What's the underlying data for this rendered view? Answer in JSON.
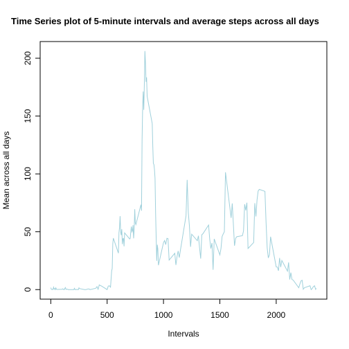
{
  "chart_data": {
    "type": "line",
    "title": "Time Series plot of 5-minute intervals and average steps across all days",
    "x_label": "Intervals",
    "y_label": "Mean across all days",
    "series": [
      {
        "name": "Mean across all days",
        "color": "#9fd0db",
        "x": [
          0,
          5,
          10,
          15,
          20,
          25,
          30,
          35,
          40,
          45,
          50,
          55,
          100,
          105,
          110,
          115,
          120,
          125,
          130,
          135,
          140,
          145,
          150,
          155,
          200,
          205,
          210,
          215,
          220,
          225,
          230,
          235,
          240,
          245,
          250,
          255,
          300,
          310,
          320,
          330,
          340,
          350,
          400,
          410,
          420,
          430,
          440,
          450,
          500,
          510,
          520,
          530,
          540,
          545,
          550,
          555,
          600,
          605,
          610,
          615,
          620,
          625,
          630,
          635,
          640,
          645,
          650,
          655,
          700,
          705,
          710,
          715,
          720,
          725,
          730,
          735,
          740,
          745,
          750,
          755,
          800,
          805,
          810,
          815,
          820,
          825,
          830,
          835,
          840,
          845,
          850,
          855,
          900,
          905,
          910,
          915,
          920,
          925,
          930,
          935,
          940,
          945,
          950,
          955,
          1000,
          1010,
          1020,
          1030,
          1040,
          1050,
          1100,
          1110,
          1120,
          1130,
          1140,
          1150,
          1200,
          1210,
          1220,
          1230,
          1240,
          1250,
          1300,
          1310,
          1320,
          1330,
          1340,
          1350,
          1400,
          1410,
          1420,
          1430,
          1440,
          1450,
          1500,
          1510,
          1520,
          1530,
          1540,
          1550,
          1600,
          1610,
          1620,
          1630,
          1640,
          1650,
          1700,
          1710,
          1720,
          1730,
          1740,
          1750,
          1800,
          1810,
          1820,
          1830,
          1840,
          1850,
          1900,
          1910,
          1920,
          1930,
          1940,
          1950,
          2000,
          2010,
          2020,
          2030,
          2040,
          2050,
          2100,
          2110,
          2120,
          2130,
          2140,
          2150,
          2200,
          2210,
          2220,
          2230,
          2240,
          2250,
          2300,
          2310,
          2320,
          2330,
          2340,
          2350,
          2355
        ],
        "values": [
          1.7,
          0.3,
          0.1,
          0.2,
          0.1,
          2.1,
          0.5,
          0.9,
          0,
          1.5,
          0.3,
          0.1,
          0.3,
          0.7,
          0.2,
          0.3,
          0,
          1.1,
          1.8,
          0.2,
          0.2,
          0.4,
          0.3,
          0,
          0,
          0,
          1.1,
          0,
          0,
          0.1,
          0,
          0.2,
          0,
          0,
          1.5,
          0.9,
          0,
          0,
          0.2,
          0.6,
          0.5,
          0,
          1.2,
          2.6,
          0.3,
          4.1,
          3.5,
          3.1,
          0,
          3,
          3.3,
          2.1,
          16,
          18.3,
          39.5,
          44.5,
          31.5,
          49.3,
          53.8,
          63.5,
          50,
          47.1,
          52.2,
          39.3,
          44,
          44.2,
          37.4,
          49,
          43.8,
          44.4,
          50.5,
          54.5,
          49.9,
          51,
          55.7,
          44.3,
          52.3,
          69.5,
          57.8,
          56.2,
          73.4,
          68.2,
          129.4,
          157.5,
          171.2,
          155.4,
          177.3,
          206.2,
          195.9,
          179.6,
          183.4,
          167,
          143.5,
          124,
          109.1,
          108.1,
          103.7,
          96,
          66.2,
          45.2,
          24.8,
          38.8,
          35,
          21.1,
          40.6,
          42.4,
          38.9,
          44.3,
          44.1,
          25.5,
          31.4,
          21.3,
          28.4,
          33.4,
          27.6,
          34,
          63.9,
          94.8,
          66.7,
          55,
          37,
          47.9,
          42.3,
          46.5,
          36.1,
          26.8,
          47.4,
          48.3,
          55.8,
          43.6,
          35.5,
          40.3,
          17.1,
          43.8,
          30,
          35.5,
          45.9,
          48.1,
          50,
          101.4,
          62,
          74.5,
          56.4,
          37.9,
          44.3,
          45.7,
          46.6,
          50.7,
          73.8,
          68.5,
          75.1,
          35.5,
          40.7,
          74.7,
          63.2,
          77.6,
          85.3,
          86.6,
          84.9,
          58,
          36.1,
          27.4,
          30.2,
          45.7,
          19.6,
          19.5,
          16.3,
          27.3,
          19.5,
          25.2,
          15.9,
          23.5,
          8.7,
          14.7,
          8.7,
          8.3,
          1.6,
          4.8,
          7.5,
          8.1,
          0.3,
          1.6,
          3.3,
          0,
          1,
          2.6,
          3.3,
          0.2,
          1.1
        ]
      }
    ],
    "xlim": [
      -94.2,
      2449.2
    ],
    "ylim": [
      -8.25,
      214.4
    ],
    "xticks": [
      0,
      500,
      1000,
      1500,
      2000
    ],
    "yticks": [
      0,
      50,
      100,
      150,
      200
    ]
  }
}
